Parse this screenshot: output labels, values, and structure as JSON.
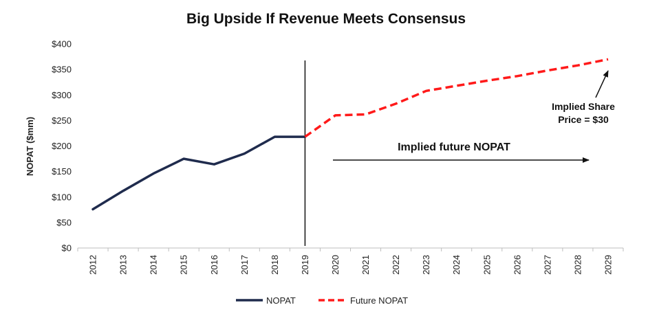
{
  "chart_data": {
    "type": "line",
    "title": "Big Upside If Revenue Meets Consensus",
    "ylabel": "NOPAT ($mm)",
    "xlabel": "",
    "ylim": [
      0,
      400
    ],
    "y_ticks": [
      "$0",
      "$50",
      "$100",
      "$150",
      "$200",
      "$250",
      "$300",
      "$350",
      "$400"
    ],
    "categories": [
      "2012",
      "2013",
      "2014",
      "2015",
      "2016",
      "2017",
      "2018",
      "2019",
      "2020",
      "2021",
      "2022",
      "2023",
      "2024",
      "2025",
      "2026",
      "2027",
      "2028",
      "2029"
    ],
    "series": [
      {
        "name": "NOPAT",
        "color": "#1f2b4d",
        "style": "solid",
        "x": [
          "2012",
          "2013",
          "2014",
          "2015",
          "2016",
          "2017",
          "2018",
          "2019"
        ],
        "values": [
          76,
          112,
          146,
          175,
          164,
          185,
          218,
          218
        ]
      },
      {
        "name": "Future NOPAT",
        "color": "#ff1a1a",
        "style": "dashed",
        "x": [
          "2019",
          "2020",
          "2021",
          "2022",
          "2023",
          "2024",
          "2025",
          "2026",
          "2027",
          "2028",
          "2029"
        ],
        "values": [
          218,
          260,
          262,
          283,
          308,
          318,
          328,
          337,
          348,
          358,
          370
        ]
      }
    ],
    "divider_at": "2019",
    "annotations": {
      "future_label": "Implied future NOPAT",
      "share_price_line1": "Implied Share",
      "share_price_line2": "Price = $30"
    },
    "legend_position": "bottom",
    "grid": false
  }
}
